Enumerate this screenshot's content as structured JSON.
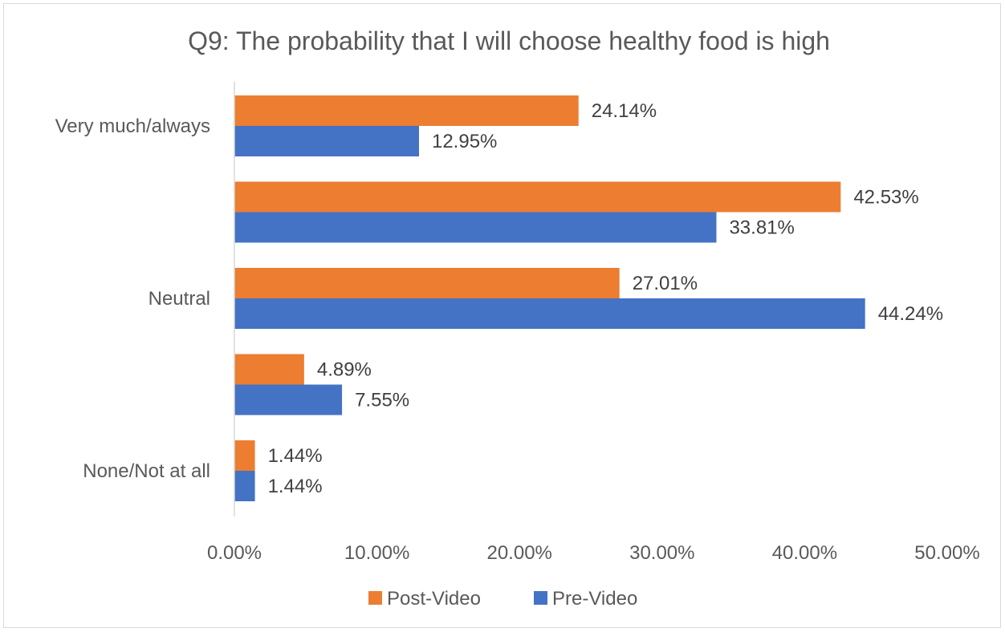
{
  "chart_data": {
    "type": "bar",
    "orientation": "horizontal",
    "title": "Q9: The probability that I will choose healthy food is high",
    "categories": [
      "Very much/always",
      "",
      "Neutral",
      "",
      "None/Not at all"
    ],
    "series": [
      {
        "name": "Post-Video",
        "color": "#ED7D31",
        "values": [
          24.14,
          42.53,
          27.01,
          4.89,
          1.44
        ],
        "labels": [
          "24.14%",
          "42.53%",
          "27.01%",
          "4.89%",
          "1.44%"
        ]
      },
      {
        "name": "Pre-Video",
        "color": "#4472C4",
        "values": [
          12.95,
          33.81,
          44.24,
          7.55,
          1.44
        ],
        "labels": [
          "12.95%",
          "33.81%",
          "44.24%",
          "7.55%",
          "1.44%"
        ]
      }
    ],
    "xlim": [
      0,
      50
    ],
    "xticks": [
      0,
      10,
      20,
      30,
      40,
      50
    ],
    "xtick_labels": [
      "0.00%",
      "10.00%",
      "20.00%",
      "30.00%",
      "40.00%",
      "50.00%"
    ],
    "grid": false,
    "legend_position": "bottom"
  }
}
